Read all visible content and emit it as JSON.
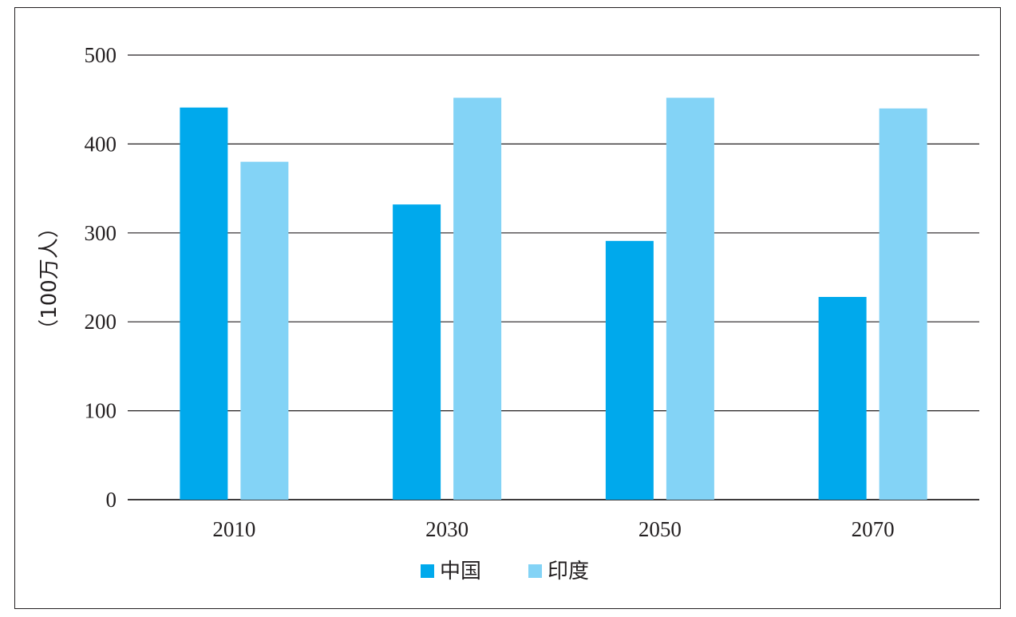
{
  "chart_data": {
    "type": "bar",
    "title": "",
    "xlabel": "",
    "ylabel": "（100万人）",
    "categories": [
      "2010",
      "2030",
      "2050",
      "2070"
    ],
    "series": [
      {
        "name": "中国",
        "values": [
          441,
          332,
          291,
          228
        ],
        "color": "#00a9ec"
      },
      {
        "name": "印度",
        "values": [
          380,
          452,
          452,
          440
        ],
        "color": "#83d3f6"
      }
    ],
    "ylim": [
      0,
      500
    ],
    "yticks": [
      0,
      100,
      200,
      300,
      400,
      500
    ],
    "grid": true,
    "legend_position": "bottom-center"
  }
}
